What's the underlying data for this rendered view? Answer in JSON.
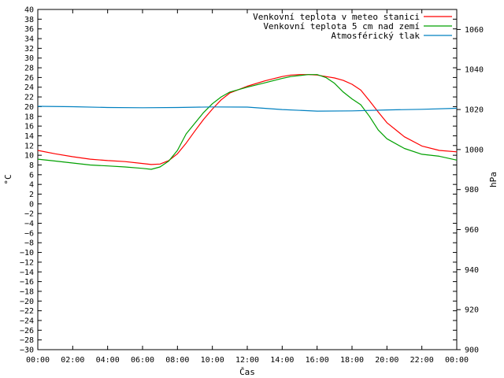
{
  "chart_data": {
    "type": "line",
    "xlabel": "Čas",
    "ylabel": "°C",
    "y2label": "hPa",
    "ylim": [
      -30,
      40
    ],
    "y2lim": [
      900,
      1070
    ],
    "xlim": [
      "00:00",
      "24:00"
    ],
    "grid": false,
    "legend_placement": "top-right",
    "x_ticks": [
      "00:00",
      "02:00",
      "04:00",
      "06:00",
      "08:00",
      "10:00",
      "12:00",
      "14:00",
      "16:00",
      "18:00",
      "20:00",
      "22:00",
      "00:00"
    ],
    "y_ticks": [
      40,
      38,
      36,
      34,
      32,
      30,
      28,
      26,
      24,
      22,
      20,
      18,
      16,
      14,
      12,
      10,
      8,
      6,
      4,
      2,
      0,
      -2,
      -4,
      -6,
      -8,
      -10,
      -12,
      -14,
      -16,
      -18,
      -20,
      -22,
      -24,
      -26,
      -28,
      -30
    ],
    "y2_ticks": [
      1060,
      1040,
      1020,
      1000,
      980,
      960,
      940,
      920,
      900
    ],
    "series": [
      {
        "name": "Venkovní teplota v meteo stanici",
        "axis": "left",
        "color": "#ff0000",
        "x": [
          "00:00",
          "01:00",
          "02:00",
          "03:00",
          "04:00",
          "05:00",
          "06:00",
          "06:30",
          "07:00",
          "07:30",
          "08:00",
          "08:30",
          "09:00",
          "09:30",
          "10:00",
          "10:30",
          "11:00",
          "12:00",
          "13:00",
          "14:00",
          "14:30",
          "15:00",
          "15:30",
          "16:00",
          "16:30",
          "17:00",
          "17:30",
          "18:00",
          "18:30",
          "19:00",
          "19:30",
          "20:00",
          "21:00",
          "22:00",
          "23:00",
          "24:00"
        ],
        "values": [
          11.0,
          10.3,
          9.7,
          9.2,
          8.9,
          8.7,
          8.3,
          8.1,
          8.2,
          8.9,
          10.3,
          12.5,
          15.0,
          17.4,
          19.5,
          21.4,
          22.8,
          24.2,
          25.3,
          26.2,
          26.5,
          26.6,
          26.6,
          26.5,
          26.2,
          25.9,
          25.4,
          24.6,
          23.4,
          21.2,
          18.9,
          16.7,
          13.8,
          11.9,
          11.0,
          10.7
        ]
      },
      {
        "name": "Venkovní teplota 5 cm nad zemí",
        "axis": "left",
        "color": "#00a000",
        "x": [
          "00:00",
          "01:00",
          "02:00",
          "03:00",
          "04:00",
          "05:00",
          "06:00",
          "06:30",
          "07:00",
          "07:30",
          "08:00",
          "08:30",
          "09:00",
          "09:30",
          "10:00",
          "10:30",
          "11:00",
          "12:00",
          "13:00",
          "14:00",
          "14:30",
          "15:00",
          "15:30",
          "16:00",
          "16:30",
          "17:00",
          "17:30",
          "18:00",
          "18:30",
          "19:00",
          "19:30",
          "20:00",
          "21:00",
          "22:00",
          "23:00",
          "24:00"
        ],
        "values": [
          9.2,
          8.8,
          8.4,
          8.0,
          7.8,
          7.6,
          7.3,
          7.1,
          7.6,
          8.8,
          11.0,
          14.4,
          16.6,
          18.8,
          20.6,
          22.0,
          23.0,
          24.0,
          24.9,
          25.8,
          26.2,
          26.4,
          26.6,
          26.6,
          26.0,
          24.8,
          23.0,
          21.6,
          20.4,
          18.0,
          15.2,
          13.4,
          11.4,
          10.2,
          9.8,
          9.0
        ]
      },
      {
        "name": "Atmosférický tlak",
        "axis": "right",
        "color": "#0080c0",
        "x": [
          "00:00",
          "02:00",
          "04:00",
          "06:00",
          "08:00",
          "10:00",
          "12:00",
          "14:00",
          "16:00",
          "18:00",
          "20:00",
          "22:00",
          "24:00"
        ],
        "values": [
          1021.6,
          1021.4,
          1021.0,
          1020.9,
          1021.0,
          1021.3,
          1021.2,
          1020.0,
          1019.2,
          1019.3,
          1019.8,
          1020.1,
          1020.6
        ]
      }
    ]
  }
}
